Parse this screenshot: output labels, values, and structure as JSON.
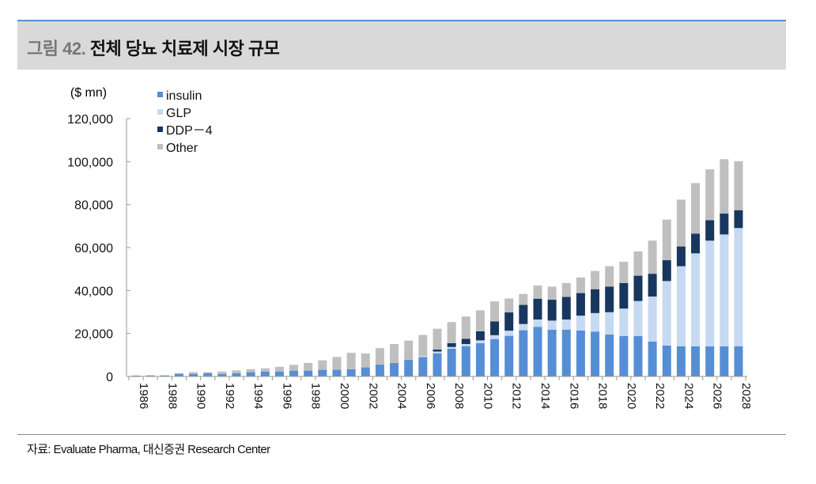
{
  "header": {
    "figure_no": "그림 42.",
    "title": "전체 당뇨 치료제 시장 규모"
  },
  "footer": {
    "source": "자료:   Evaluate Pharma, 대신증권 Research Center"
  },
  "chart_data": {
    "type": "bar",
    "stacked": true,
    "unit_label": "($ mn)",
    "ylim": [
      0,
      120000
    ],
    "yticks": [
      0,
      20000,
      40000,
      60000,
      80000,
      100000,
      120000
    ],
    "ytick_labels": [
      "0",
      "20,000",
      "40,000",
      "60,000",
      "80,000",
      "100,000",
      "120,000"
    ],
    "xtick_labels": [
      "1986",
      "1988",
      "1990",
      "1992",
      "1994",
      "1996",
      "1998",
      "2000",
      "2002",
      "2004",
      "2006",
      "2008",
      "2010",
      "2012",
      "2014",
      "2016",
      "2018",
      "2020",
      "2022",
      "2024",
      "2026",
      "2028"
    ],
    "grid": false,
    "legend_placement": "top-left",
    "categories": [
      1986,
      1987,
      1988,
      1989,
      1990,
      1991,
      1992,
      1993,
      1994,
      1995,
      1996,
      1997,
      1998,
      1999,
      2000,
      2001,
      2002,
      2003,
      2004,
      2005,
      2006,
      2007,
      2008,
      2009,
      2010,
      2011,
      2012,
      2013,
      2014,
      2015,
      2016,
      2017,
      2018,
      2019,
      2020,
      2021,
      2022,
      2023,
      2024,
      2025,
      2026,
      2027,
      2028
    ],
    "series": [
      {
        "name": "insulin",
        "color": "#558ed5",
        "values": [
          400,
          400,
          400,
          1200,
          1200,
          1500,
          1200,
          1500,
          2000,
          2300,
          2300,
          2700,
          2700,
          3100,
          3100,
          3400,
          4200,
          5500,
          6300,
          7700,
          9000,
          10800,
          12900,
          14100,
          15500,
          17400,
          18900,
          21500,
          23100,
          21800,
          21800,
          21400,
          20900,
          19500,
          18800,
          18800,
          16200,
          14400,
          14000,
          14000,
          14000,
          14000,
          14000
        ]
      },
      {
        "name": "GLP",
        "color": "#c6d9f1",
        "values": [
          0,
          0,
          0,
          0,
          0,
          0,
          0,
          0,
          0,
          0,
          0,
          0,
          0,
          0,
          0,
          0,
          0,
          0,
          0,
          0,
          500,
          800,
          800,
          1000,
          1300,
          1800,
          2400,
          2900,
          3400,
          4200,
          4700,
          6900,
          8600,
          10400,
          12800,
          16300,
          21000,
          30000,
          37300,
          43300,
          49200,
          52100,
          55100
        ]
      },
      {
        "name": "DDP-4",
        "color": "#17375e",
        "values": [
          0,
          0,
          0,
          0,
          0,
          0,
          0,
          0,
          0,
          0,
          0,
          0,
          0,
          0,
          0,
          0,
          0,
          0,
          0,
          0,
          0,
          900,
          1800,
          2400,
          4200,
          6400,
          8500,
          8900,
          9700,
          9700,
          10500,
          10500,
          11100,
          11900,
          11900,
          11800,
          10600,
          9700,
          9200,
          9200,
          9500,
          9700,
          8300
        ]
      },
      {
        "name": "Other",
        "color": "#bfbfbf",
        "values": [
          0,
          200,
          200,
          400,
          800,
          500,
          1100,
          1300,
          1400,
          1500,
          2200,
          2700,
          3600,
          4400,
          6000,
          7600,
          6500,
          7700,
          8800,
          9000,
          9800,
          9700,
          9800,
          10400,
          9800,
          9400,
          6500,
          5100,
          6100,
          6100,
          6500,
          7300,
          8500,
          9500,
          9900,
          11300,
          15400,
          18900,
          21800,
          23500,
          23700,
          25300,
          22800
        ]
      }
    ],
    "legend_labels": [
      "insulin",
      "GLP",
      "DDP－4",
      "Other"
    ]
  }
}
